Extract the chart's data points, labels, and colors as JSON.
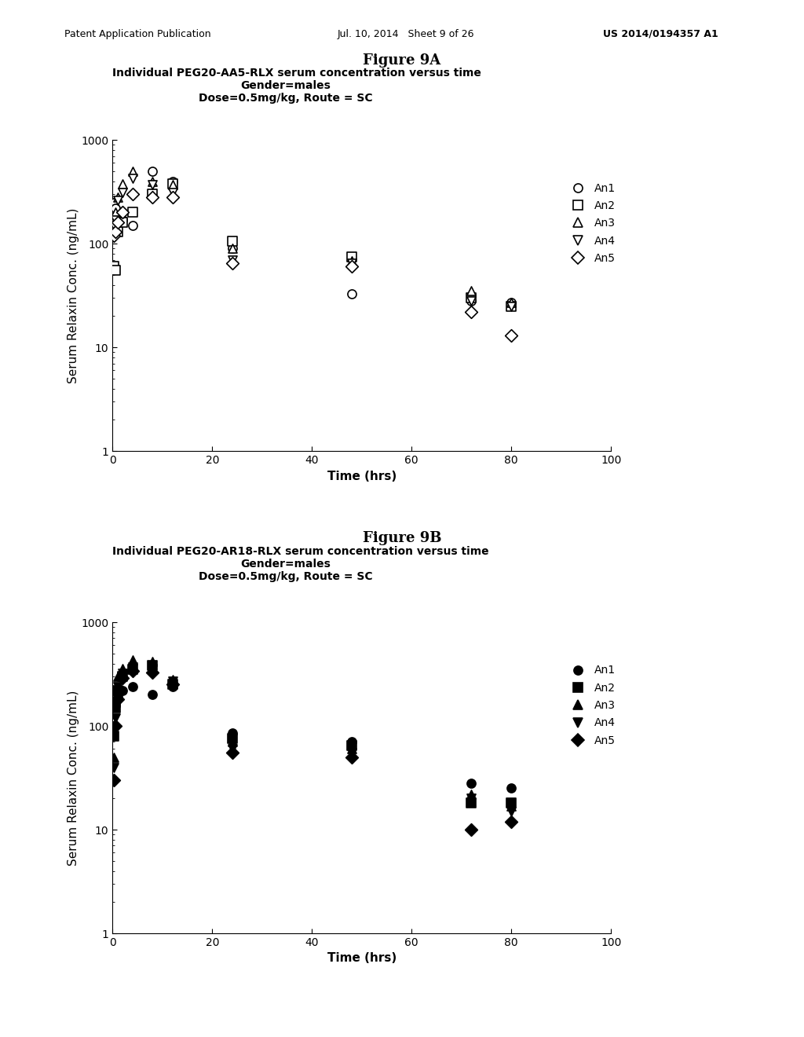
{
  "fig9A": {
    "title_fig": "Figure 9A",
    "title_plot_line1": "Individual PEG20-AA5-RLX serum concentration versus time",
    "title_plot_line2": "Gender=males",
    "title_plot_line3": "Dose=0.5mg/kg, Route = SC",
    "ylabel": "Serum Relaxin Conc. (ng/mL)",
    "xlabel": "Time (hrs)",
    "animals": {
      "An1": {
        "marker": "o",
        "filled": false,
        "times": [
          0.25,
          0.5,
          1,
          2,
          4,
          8,
          12,
          24,
          48,
          72,
          80
        ],
        "conc": [
          250,
          220,
          180,
          170,
          150,
          500,
          400,
          90,
          33,
          28,
          27
        ]
      },
      "An2": {
        "marker": "s",
        "filled": false,
        "times": [
          0.25,
          0.5,
          1,
          2,
          4,
          8,
          12,
          24,
          48,
          72,
          80
        ],
        "conc": [
          60,
          55,
          130,
          160,
          200,
          300,
          380,
          105,
          75,
          30,
          25
        ]
      },
      "An3": {
        "marker": "^",
        "filled": false,
        "times": [
          0.25,
          0.5,
          1,
          2,
          4,
          8,
          12,
          24,
          48,
          72,
          80
        ],
        "conc": [
          170,
          200,
          280,
          380,
          500,
          400,
          370,
          90,
          68,
          35,
          27
        ]
      },
      "An4": {
        "marker": "v",
        "filled": false,
        "times": [
          0.25,
          0.5,
          1,
          2,
          4,
          8,
          12,
          24,
          48,
          72,
          80
        ],
        "conc": [
          150,
          170,
          260,
          310,
          430,
          370,
          310,
          70,
          65,
          28,
          25
        ]
      },
      "An5": {
        "marker": "D",
        "filled": false,
        "times": [
          0.25,
          0.5,
          1,
          2,
          4,
          8,
          12,
          24,
          48,
          72,
          80
        ],
        "conc": [
          120,
          130,
          160,
          200,
          300,
          280,
          280,
          65,
          60,
          22,
          13
        ]
      }
    }
  },
  "fig9B": {
    "title_fig": "Figure 9B",
    "title_plot_line1": "Individual PEG20-AR18-RLX serum concentration versus time",
    "title_plot_line2": "Gender=males",
    "title_plot_line3": "Dose=0.5mg/kg, Route = SC",
    "ylabel": "Serum Relaxin Conc. (ng/mL)",
    "xlabel": "Time (hrs)",
    "animals": {
      "An1": {
        "marker": "o",
        "filled": true,
        "times": [
          0.25,
          0.5,
          1,
          2,
          4,
          8,
          12,
          24,
          48,
          72,
          80
        ],
        "conc": [
          100,
          160,
          190,
          220,
          240,
          200,
          240,
          85,
          70,
          28,
          25
        ]
      },
      "An2": {
        "marker": "s",
        "filled": true,
        "times": [
          0.25,
          0.5,
          1,
          2,
          4,
          8,
          12,
          24,
          48,
          72,
          80
        ],
        "conc": [
          80,
          150,
          220,
          300,
          350,
          380,
          250,
          75,
          65,
          18,
          18
        ]
      },
      "An3": {
        "marker": "^",
        "filled": true,
        "times": [
          0.25,
          0.5,
          1,
          2,
          4,
          8,
          12,
          24,
          48,
          72,
          80
        ],
        "conc": [
          50,
          170,
          300,
          360,
          430,
          420,
          280,
          70,
          60,
          22,
          17
        ]
      },
      "An4": {
        "marker": "v",
        "filled": true,
        "times": [
          0.25,
          0.5,
          1,
          2,
          4,
          8,
          12,
          24,
          48,
          72,
          80
        ],
        "conc": [
          40,
          120,
          240,
          320,
          370,
          360,
          270,
          60,
          55,
          20,
          15
        ]
      },
      "An5": {
        "marker": "D",
        "filled": true,
        "times": [
          0.25,
          0.5,
          1,
          2,
          4,
          8,
          12,
          24,
          48,
          72,
          80
        ],
        "conc": [
          30,
          100,
          180,
          290,
          340,
          330,
          250,
          55,
          50,
          10,
          12
        ]
      }
    }
  },
  "header_left": "Patent Application Publication",
  "header_mid": "Jul. 10, 2014   Sheet 9 of 26",
  "header_right": "US 2014/0194357 A1",
  "xlim": [
    0,
    100
  ],
  "ylim_log": [
    1,
    1000
  ],
  "color": "#000000",
  "markersize": 8,
  "fontsize_title_fig": 13,
  "fontsize_title_plot": 10,
  "fontsize_axis": 11,
  "fontsize_tick": 10,
  "fontsize_legend": 10,
  "fontsize_header": 9
}
